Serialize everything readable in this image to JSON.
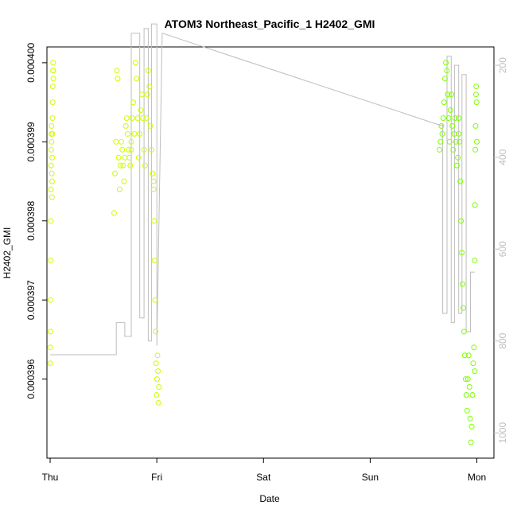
{
  "chart_data": {
    "type": "scatter",
    "title": "ATOM3 Northeast_Pacific_1 H2402_GMI",
    "xlabel": "Date",
    "ylabel": "H2402_GMI",
    "x_ticks": [
      "Thu",
      "Fri",
      "Sat",
      "Sun",
      "Mon"
    ],
    "y_ticks": [
      "0.000396",
      "0.000397",
      "0.000398",
      "0.000399",
      "0.000400"
    ],
    "y_ticks_right": [
      "200",
      "400",
      "600",
      "800",
      "1000"
    ],
    "x_range_days": [
      -0.03,
      4.16
    ],
    "ylim": [
      0.000395,
      0.0004002
    ],
    "ylim_right": [
      1055,
      160
    ],
    "grid": false,
    "series": [
      {
        "points_color": "#ccff00",
        "segments": [
          {
            "x0": 0.0,
            "x1": 0.03,
            "values": [
              0.0003964,
              0.0003962,
              0.0003966,
              0.000397,
              0.0003975,
              0.000398,
              0.0003984,
              0.0003987,
              0.0003989,
              0.0003991,
              0.0003992,
              0.000399,
              0.0003986,
              0.0003983,
              0.0003985,
              0.0003988,
              0.0003991,
              0.0003993,
              0.0003995,
              0.0003997,
              0.0003999,
              0.0004,
              0.0003999,
              0.0003998
            ]
          },
          {
            "x0": 0.6,
            "x1": 0.76,
            "values": [
              0.0003981,
              0.0003986,
              0.000399,
              0.0003999,
              0.0003998,
              0.0003988,
              0.0003984,
              0.0003987,
              0.000399,
              0.0003989,
              0.0003987,
              0.0003985,
              0.0003988,
              0.0003992,
              0.0003993,
              0.0003991,
              0.0003989,
              0.0003988,
              0.0003987,
              0.0003989
            ]
          },
          {
            "x0": 0.76,
            "x1": 0.97,
            "values": [
              0.000399,
              0.0003993,
              0.0003995,
              0.0003991,
              0.0004,
              0.0003998,
              0.0003993,
              0.0003988,
              0.0003991,
              0.0003994,
              0.0003996,
              0.0003993,
              0.0003989,
              0.0003987,
              0.0003993,
              0.0003996,
              0.0003999,
              0.0003997,
              0.0003992,
              0.0003989,
              0.0003986,
              0.0003984
            ]
          },
          {
            "x0": 0.97,
            "x1": 1.02,
            "values": [
              0.0003985,
              0.000398,
              0.0003975,
              0.000397,
              0.0003966,
              0.0003962,
              0.0003958,
              0.000396,
              0.0003963,
              0.0003961,
              0.0003957,
              0.0003959
            ]
          }
        ]
      },
      {
        "points_color": "#80ff00",
        "segments": [
          {
            "x0": 3.65,
            "x1": 3.83,
            "values": [
              0.0003989,
              0.000399,
              0.0003992,
              0.0003991,
              0.0003993,
              0.0003995,
              0.0003998,
              0.0004,
              0.0003999,
              0.0003996,
              0.0003993,
              0.000399,
              0.0003994,
              0.0003996,
              0.0003992,
              0.0003989,
              0.0003991,
              0.0003993,
              0.000399,
              0.0003987,
              0.0003988,
              0.0003991
            ]
          },
          {
            "x0": 3.83,
            "x1": 3.98,
            "values": [
              0.0003993,
              0.000399,
              0.0003985,
              0.000398,
              0.0003976,
              0.0003972,
              0.0003969,
              0.0003966,
              0.0003963,
              0.000396,
              0.0003958,
              0.0003956,
              0.000396,
              0.0003963,
              0.0003959,
              0.0003955,
              0.0003952,
              0.0003954,
              0.0003958,
              0.0003962,
              0.0003964,
              0.0003961
            ]
          },
          {
            "x0": 3.98,
            "x1": 4.0,
            "values": [
              0.0003975,
              0.0003982,
              0.0003989,
              0.0003992,
              0.0003996,
              0.0003997,
              0.0003995,
              0.000399
            ]
          }
        ]
      }
    ],
    "line_series": {
      "color": "#bebebe",
      "points": [
        [
          0.0,
          830
        ],
        [
          0.62,
          830
        ],
        [
          0.62,
          760
        ],
        [
          0.7,
          760
        ],
        [
          0.7,
          790
        ],
        [
          0.76,
          790
        ],
        [
          0.76,
          130
        ],
        [
          0.84,
          130
        ],
        [
          0.84,
          750
        ],
        [
          0.88,
          750
        ],
        [
          0.88,
          120
        ],
        [
          0.92,
          120
        ],
        [
          0.92,
          800
        ],
        [
          0.95,
          800
        ],
        [
          0.95,
          110
        ],
        [
          1.0,
          110
        ],
        [
          1.0,
          810
        ],
        [
          1.05,
          130
        ],
        [
          3.65,
          330
        ],
        [
          3.68,
          330
        ],
        [
          3.68,
          740
        ],
        [
          3.72,
          740
        ],
        [
          3.72,
          180
        ],
        [
          3.76,
          180
        ],
        [
          3.76,
          760
        ],
        [
          3.79,
          760
        ],
        [
          3.79,
          200
        ],
        [
          3.83,
          200
        ],
        [
          3.83,
          740
        ],
        [
          3.86,
          740
        ],
        [
          3.86,
          220
        ],
        [
          3.9,
          220
        ],
        [
          3.9,
          780
        ],
        [
          3.94,
          780
        ],
        [
          3.94,
          650
        ],
        [
          3.98,
          650
        ]
      ]
    }
  }
}
